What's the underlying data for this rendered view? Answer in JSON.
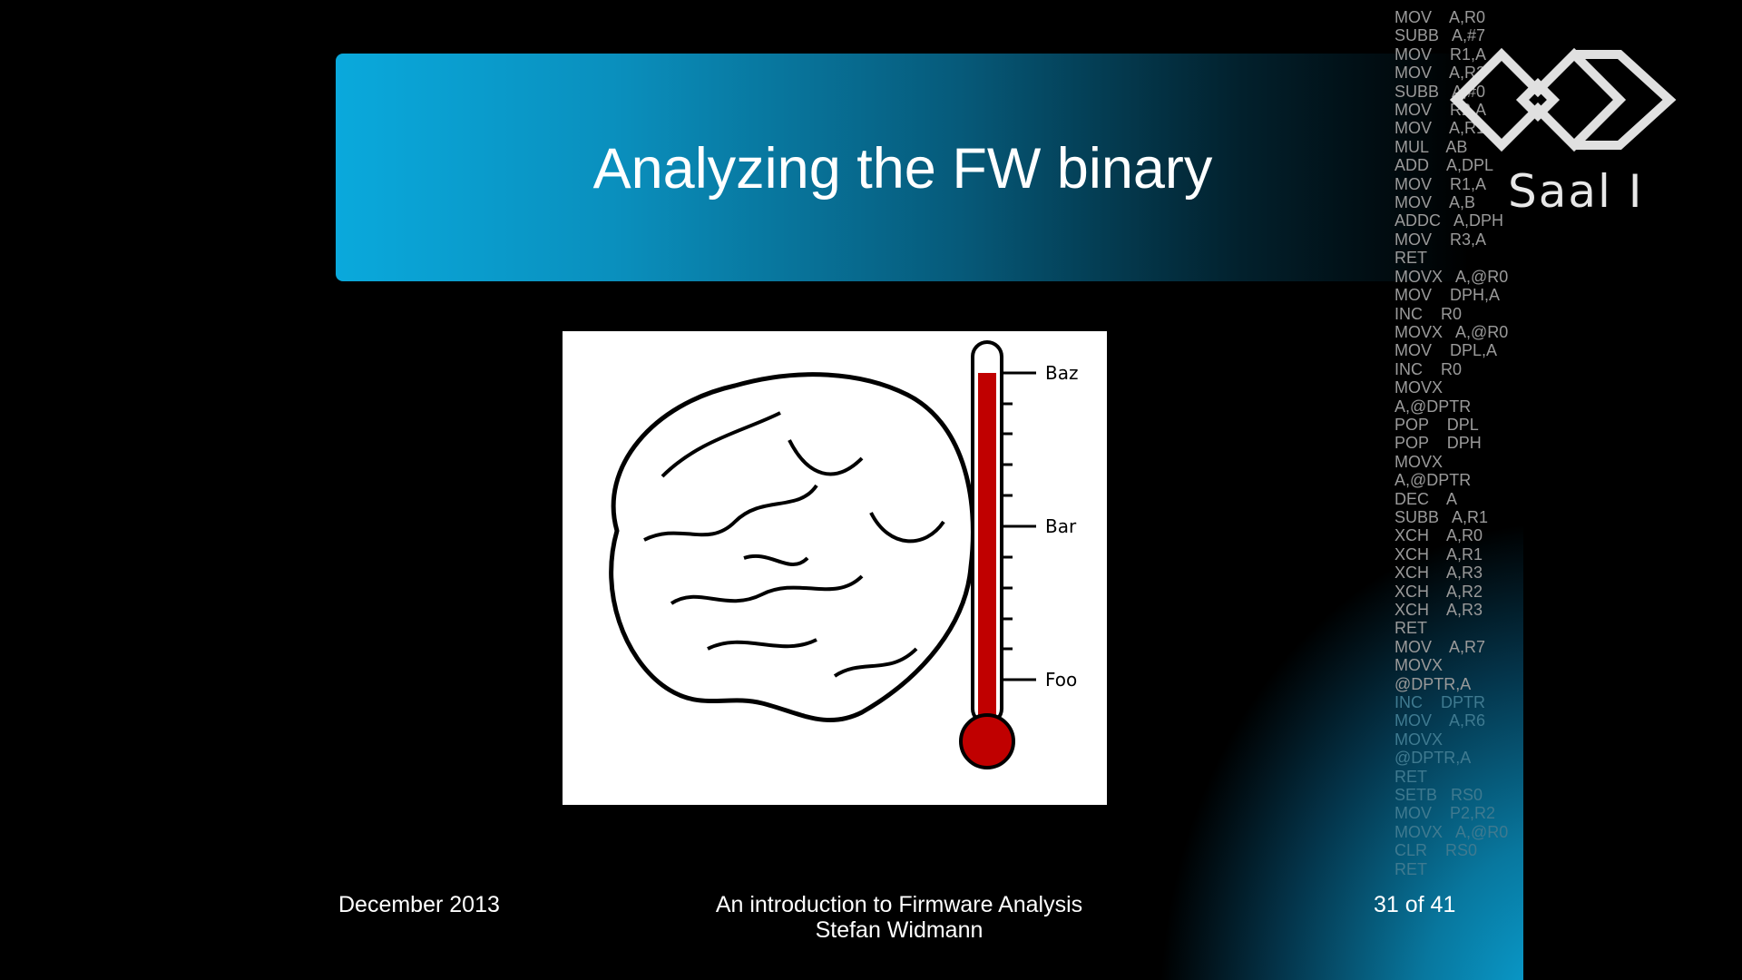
{
  "slide": {
    "title": "Analyzing the FW binary",
    "figure": {
      "labels": [
        "Baz",
        "Bar",
        "Foo"
      ]
    },
    "footer": {
      "date": "December 2013",
      "talk": "An introduction to Firmware Analysis",
      "author": "Stefan Widmann",
      "page": "31 of 41"
    }
  },
  "overlay": {
    "logo": "Saal I",
    "code": [
      "MOV    A,R0",
      "SUBB   A,#7",
      "MOV    R1,A",
      "MOV    A,R2",
      "SUBB   A,#0",
      "MOV    R2,A",
      "MOV    A,R1",
      "MUL    AB",
      "ADD    A,DPL",
      "MOV    R1,A",
      "MOV    A,B",
      "ADDC   A,DPH",
      "MOV    R3,A",
      "RET",
      "MOVX   A,@R0",
      "MOV    DPH,A",
      "INC    R0",
      "MOVX   A,@R0",
      "MOV    DPL,A",
      "INC    R0",
      "MOVX",
      "A,@DPTR",
      "POP    DPL",
      "POP    DPH",
      "MOVX",
      "A,@DPTR",
      "DEC    A",
      "SUBB   A,R1",
      "XCH    A,R0",
      "XCH    A,R1",
      "XCH    A,R3",
      "XCH    A,R2",
      "XCH    A,R3",
      "RET",
      "MOV    A,R7",
      "MOVX",
      "@DPTR,A",
      "INC    DPTR",
      "MOV    A,R6",
      "MOVX",
      "@DPTR,A",
      "RET",
      "SETB   RS0",
      "MOV    P2,R2",
      "MOVX   A,@R0",
      "CLR    RS0",
      "RET"
    ]
  }
}
